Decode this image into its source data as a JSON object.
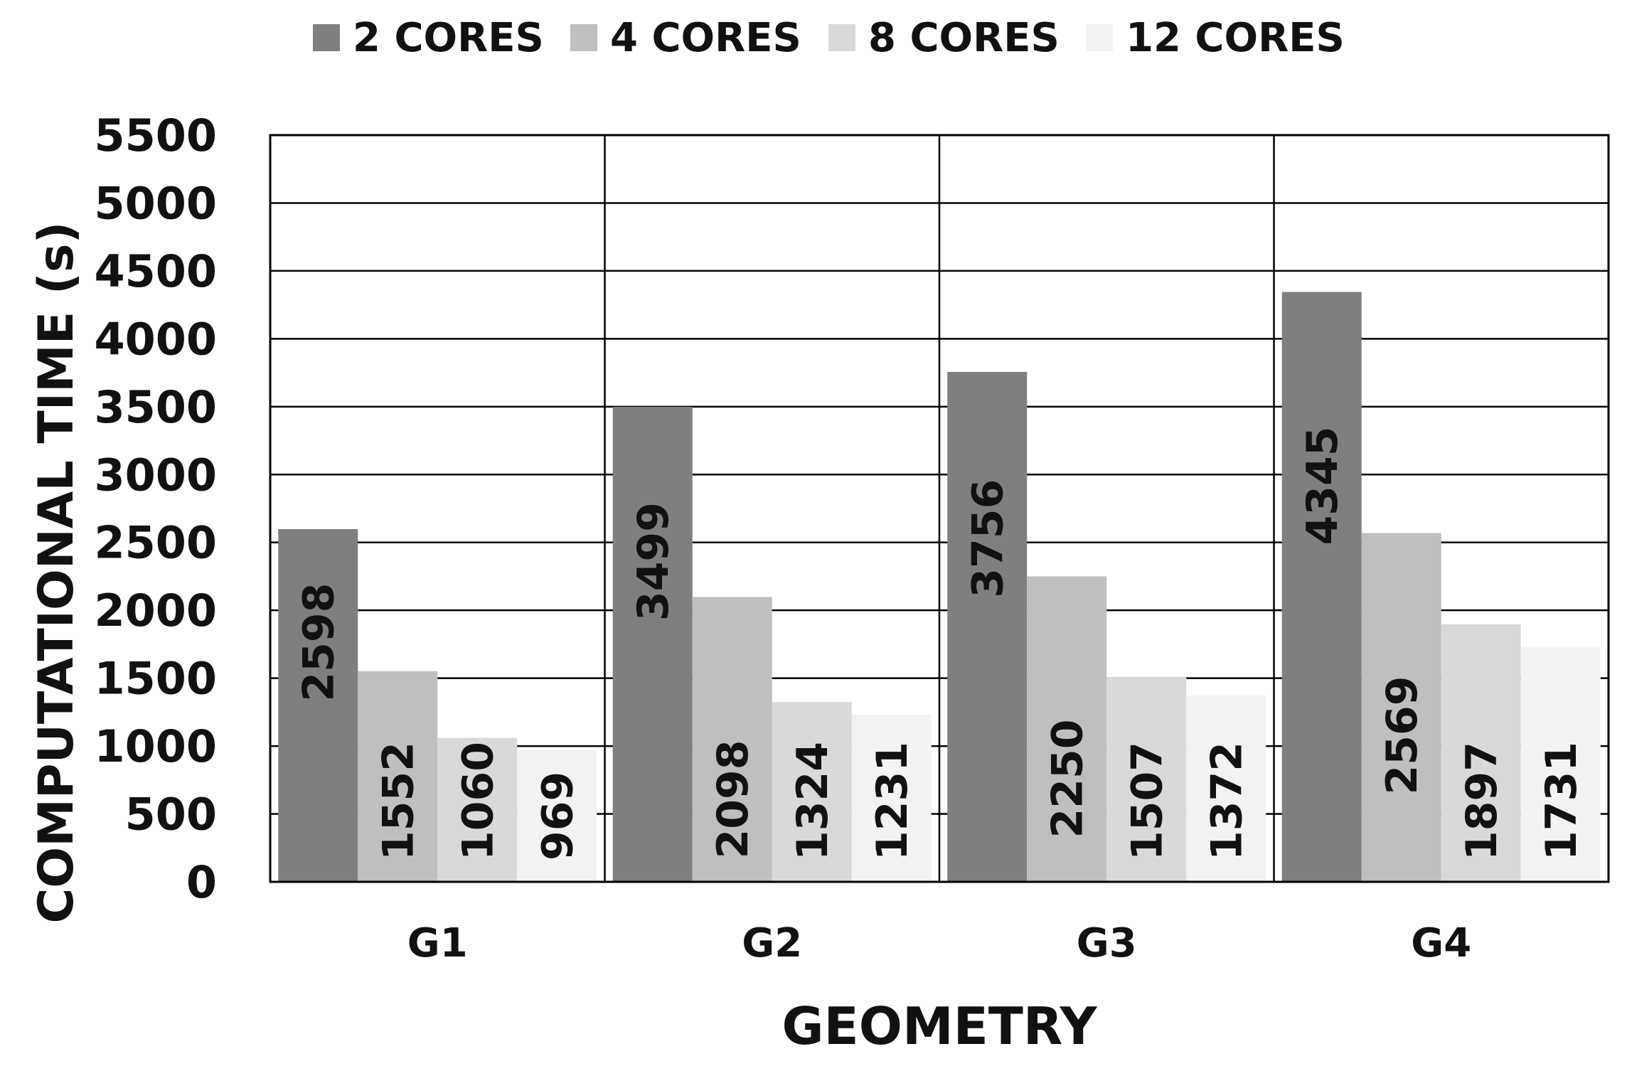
{
  "chart_data": {
    "type": "bar",
    "title": "",
    "xlabel": "GEOMETRY",
    "ylabel": "COMPUTATIONAL TIME (s)",
    "categories": [
      "G1",
      "G2",
      "G3",
      "G4"
    ],
    "ylim": [
      0,
      5500
    ],
    "yticks": [
      0,
      500,
      1000,
      1500,
      2000,
      2500,
      3000,
      3500,
      4000,
      4500,
      5000,
      5500
    ],
    "grid": true,
    "legend_position": "top",
    "series": [
      {
        "name": "2 CORES",
        "color": "#7f7f7f",
        "values": [
          2598,
          3499,
          3756,
          4345
        ]
      },
      {
        "name": "4 CORES",
        "color": "#bfbfbf",
        "values": [
          1552,
          2098,
          2250,
          2569
        ]
      },
      {
        "name": "8 CORES",
        "color": "#d9d9d9",
        "values": [
          1060,
          1324,
          1507,
          1897
        ]
      },
      {
        "name": "12 CORES",
        "color": "#f2f2f2",
        "values": [
          969,
          1231,
          1372,
          1731
        ]
      }
    ]
  }
}
